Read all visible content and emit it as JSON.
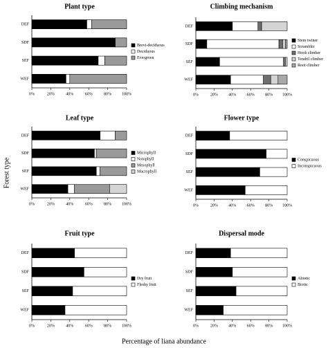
{
  "xlabel": "Percentage of liana abundance",
  "ylabel": "Forest type",
  "chart_data": [
    {
      "type": "bar",
      "orientation": "horizontal",
      "stacked": true,
      "title": "Plant type",
      "categories": [
        "DEF",
        "SDF",
        "SEF",
        "WEF"
      ],
      "series": [
        {
          "name": "Brevi-deciduous",
          "color": "#000000",
          "values": [
            58,
            88,
            70,
            36
          ]
        },
        {
          "name": "Deciduous",
          "color": "#ffffff",
          "values": [
            5,
            0,
            7,
            4
          ]
        },
        {
          "name": "Evergreen",
          "color": "#9a9a9a",
          "values": [
            37,
            12,
            23,
            60
          ]
        }
      ],
      "xlim": [
        0,
        100
      ],
      "xticks": [
        {
          "value": 0,
          "label": "0%"
        },
        {
          "value": 20,
          "label": "20%"
        },
        {
          "value": 40,
          "label": "40%"
        },
        {
          "value": 60,
          "label": "60%"
        },
        {
          "value": 80,
          "label": "80%"
        },
        {
          "value": 100,
          "label": "100%"
        }
      ],
      "legend": "right"
    },
    {
      "type": "bar",
      "orientation": "horizontal",
      "stacked": true,
      "title": "Climbing mechanism",
      "categories": [
        "DEF",
        "SDF",
        "SEF",
        "WEF"
      ],
      "series": [
        {
          "name": "Stem twiner",
          "color": "#000000",
          "values": [
            40,
            12,
            26,
            38
          ]
        },
        {
          "name": "Scrambler",
          "color": "#ffffff",
          "values": [
            28,
            79,
            70,
            36
          ]
        },
        {
          "name": "Hook climber",
          "color": "#6e6e6e",
          "values": [
            4,
            4,
            2,
            8
          ]
        },
        {
          "name": "Tendril climber",
          "color": "#d4d4d4",
          "values": [
            28,
            3,
            2,
            8
          ]
        },
        {
          "name": "Root climber",
          "color": "#a8a8a8",
          "values": [
            0,
            2,
            0,
            10
          ]
        }
      ],
      "xlim": [
        0,
        100
      ],
      "xticks": [
        {
          "value": 0,
          "label": "0%"
        },
        {
          "value": 20,
          "label": "20%"
        },
        {
          "value": 40,
          "label": "40%"
        },
        {
          "value": 60,
          "label": "60%"
        },
        {
          "value": 80,
          "label": "80%"
        },
        {
          "value": 100,
          "label": "100%"
        }
      ],
      "legend": "right"
    },
    {
      "type": "bar",
      "orientation": "horizontal",
      "stacked": true,
      "title": "Leaf type",
      "categories": [
        "DEF",
        "SDF",
        "SEF",
        "WEF"
      ],
      "series": [
        {
          "name": "Microphyll",
          "color": "#000000",
          "values": [
            72,
            66,
            68,
            38
          ]
        },
        {
          "name": "Notophyll",
          "color": "#ffffff",
          "values": [
            16,
            2,
            4,
            7
          ]
        },
        {
          "name": "Mesophyll",
          "color": "#9a9a9a",
          "values": [
            12,
            32,
            28,
            37
          ]
        },
        {
          "name": "Macrophyll",
          "color": "#d4d4d4",
          "values": [
            0,
            0,
            0,
            18
          ]
        }
      ],
      "xlim": [
        0,
        100
      ],
      "xticks": [
        {
          "value": 0,
          "label": "0%"
        },
        {
          "value": 20,
          "label": "20%"
        },
        {
          "value": 40,
          "label": "40%"
        },
        {
          "value": 60,
          "label": "60%"
        },
        {
          "value": 80,
          "label": "80%"
        },
        {
          "value": 100,
          "label": "100%"
        }
      ],
      "legend": "right"
    },
    {
      "type": "bar",
      "orientation": "horizontal",
      "stacked": true,
      "title": "Flower type",
      "categories": [
        "DEF",
        "SDF",
        "SEF",
        "WEF"
      ],
      "series": [
        {
          "name": "Conspicuous",
          "color": "#000000",
          "values": [
            37,
            77,
            70,
            54
          ]
        },
        {
          "name": "Inconspicuous",
          "color": "#ffffff",
          "values": [
            63,
            23,
            30,
            46
          ]
        }
      ],
      "xlim": [
        0,
        100
      ],
      "xticks": [
        {
          "value": 0,
          "label": "0%"
        },
        {
          "value": 20,
          "label": "20%"
        },
        {
          "value": 40,
          "label": "40%"
        },
        {
          "value": 60,
          "label": "60%"
        },
        {
          "value": 80,
          "label": "80%"
        },
        {
          "value": 100,
          "label": "100%"
        }
      ],
      "legend": "right"
    },
    {
      "type": "bar",
      "orientation": "horizontal",
      "stacked": true,
      "title": "Fruit type",
      "categories": [
        "DEF",
        "SDF",
        "SEF",
        "WEF"
      ],
      "series": [
        {
          "name": "Dry fruit",
          "color": "#000000",
          "values": [
            45,
            55,
            43,
            35
          ]
        },
        {
          "name": "Fleshy fruit",
          "color": "#ffffff",
          "values": [
            55,
            45,
            57,
            65
          ]
        }
      ],
      "xlim": [
        0,
        100
      ],
      "xticks": [
        {
          "value": 0,
          "label": "0%"
        },
        {
          "value": 20,
          "label": "20%"
        },
        {
          "value": 40,
          "label": "40%"
        },
        {
          "value": 60,
          "label": "60%"
        },
        {
          "value": 80,
          "label": "80%"
        },
        {
          "value": 100,
          "label": "100%"
        }
      ],
      "legend": "right"
    },
    {
      "type": "bar",
      "orientation": "horizontal",
      "stacked": true,
      "title": "Dispersal mode",
      "categories": [
        "DEF",
        "SDF",
        "SEF",
        "WEF"
      ],
      "series": [
        {
          "name": "Abiotic",
          "color": "#000000",
          "values": [
            38,
            40,
            44,
            30
          ]
        },
        {
          "name": "Biotic",
          "color": "#ffffff",
          "values": [
            62,
            60,
            56,
            70
          ]
        }
      ],
      "xlim": [
        0,
        100
      ],
      "xticks": [
        {
          "value": 0,
          "label": "0%"
        },
        {
          "value": 20,
          "label": "20%"
        },
        {
          "value": 40,
          "label": "40%"
        },
        {
          "value": 60,
          "label": "60%"
        },
        {
          "value": 80,
          "label": "80%"
        },
        {
          "value": 100,
          "label": "100%"
        }
      ],
      "legend": "right"
    }
  ]
}
